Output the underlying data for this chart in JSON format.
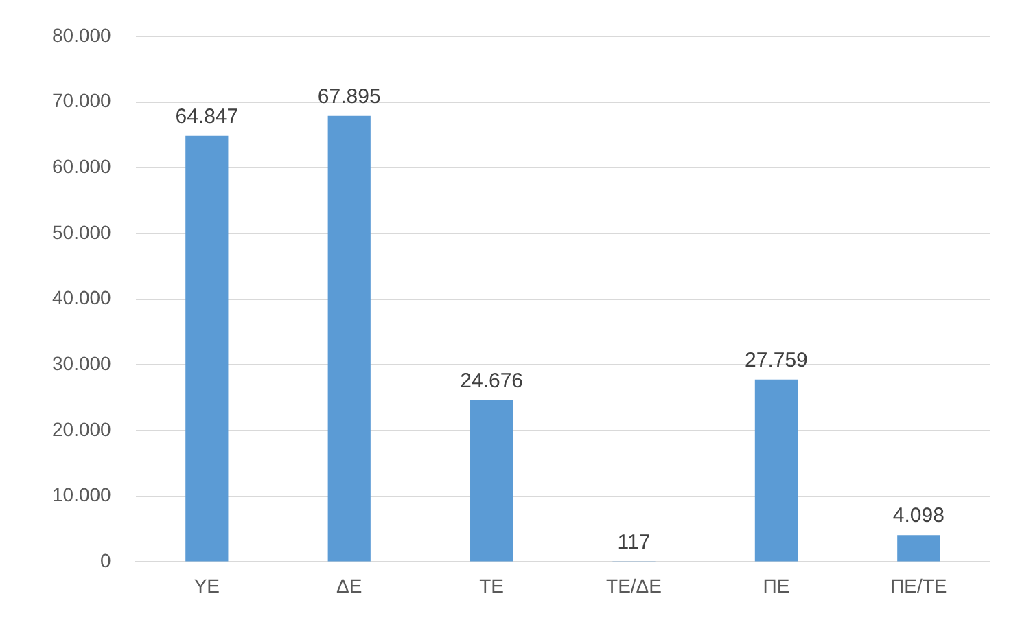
{
  "chart_data": {
    "type": "bar",
    "categories": [
      "ΥΕ",
      "ΔΕ",
      "ΤΕ",
      "ΤΕ/ΔΕ",
      "ΠΕ",
      "ΠΕ/ΤΕ"
    ],
    "values": [
      64847,
      67895,
      24676,
      117,
      27759,
      4098
    ],
    "value_labels": [
      "64.847",
      "67.895",
      "24.676",
      "117",
      "27.759",
      "4.098"
    ],
    "color": "#5b9bd5",
    "ylim": [
      0,
      80000
    ],
    "yticks": [
      {
        "value": 0,
        "label": "0"
      },
      {
        "value": 10000,
        "label": "10.000"
      },
      {
        "value": 20000,
        "label": "20.000"
      },
      {
        "value": 30000,
        "label": "30.000"
      },
      {
        "value": 40000,
        "label": "40.000"
      },
      {
        "value": 50000,
        "label": "50.000"
      },
      {
        "value": 60000,
        "label": "60.000"
      },
      {
        "value": 70000,
        "label": "70.000"
      },
      {
        "value": 80000,
        "label": "80.000"
      }
    ],
    "grid": "y",
    "legend": false
  }
}
